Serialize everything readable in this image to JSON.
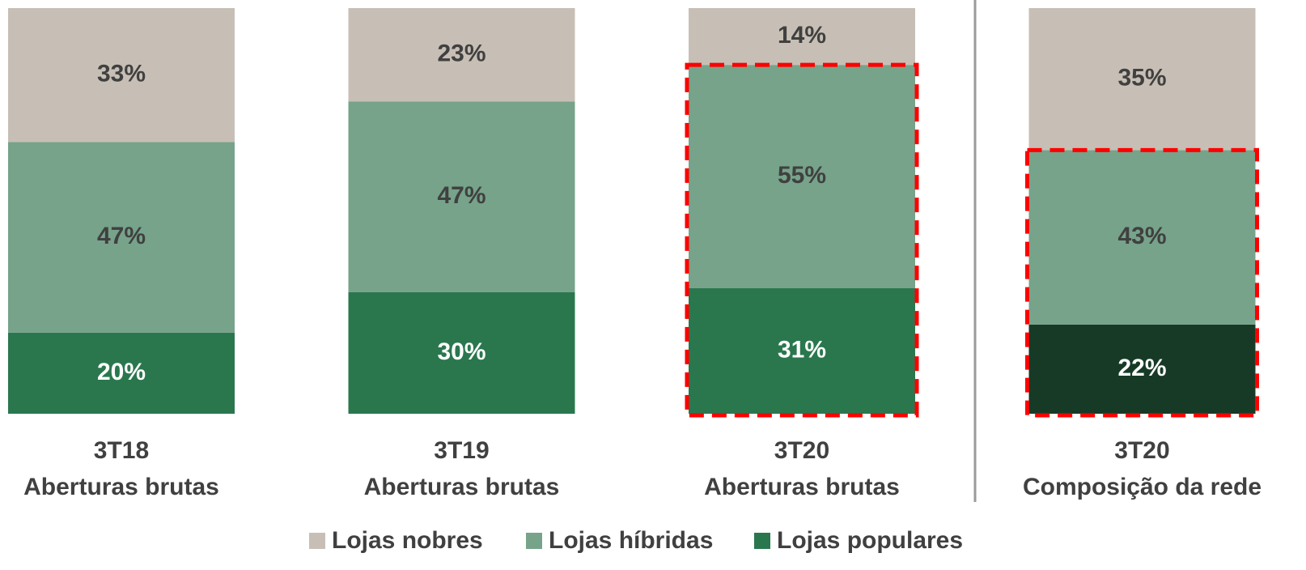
{
  "chart_data": {
    "type": "stacked_bar",
    "categories": [
      [
        "3T18",
        "Aberturas brutas"
      ],
      [
        "3T19",
        "Aberturas brutas"
      ],
      [
        "3T20",
        "Aberturas brutas"
      ],
      [
        "3T20",
        "Composição da rede"
      ]
    ],
    "series": [
      {
        "name": "Lojas nobres",
        "color": "#c7bfb5",
        "values": [
          33,
          23,
          14,
          35
        ]
      },
      {
        "name": "Lojas híbridas",
        "color": "#76a38a",
        "values": [
          47,
          47,
          55,
          43
        ]
      },
      {
        "name": "Lojas populares",
        "color": "#2a774e",
        "colors": [
          "#2a774e",
          "#2a774e",
          "#2a774e",
          "#173a26"
        ],
        "values": [
          20,
          30,
          31,
          22
        ]
      }
    ],
    "value_labels": [
      [
        "33%",
        "23%",
        "14%",
        "35%"
      ],
      [
        "47%",
        "47%",
        "55%",
        "43%"
      ],
      [
        "20%",
        "30%",
        "31%",
        "22%"
      ]
    ],
    "ylim": [
      0,
      100
    ],
    "highlighted": [
      false,
      false,
      true,
      true
    ],
    "highlight_color": "#ff0000",
    "legend": "bottom"
  }
}
